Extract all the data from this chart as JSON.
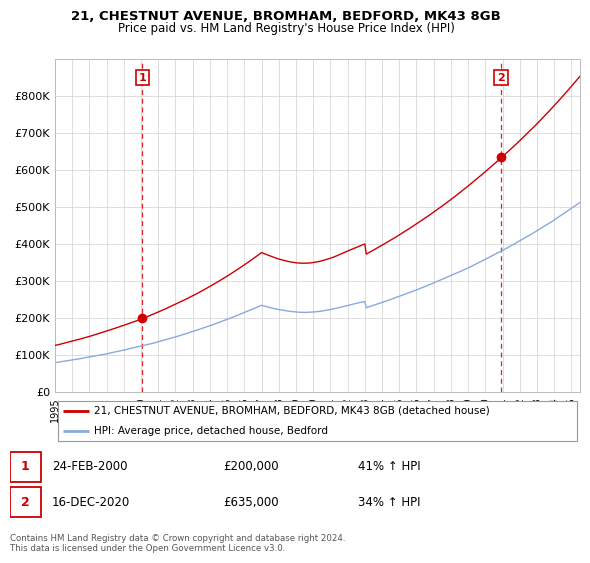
{
  "title_line1": "21, CHESTNUT AVENUE, BROMHAM, BEDFORD, MK43 8GB",
  "title_line2": "Price paid vs. HM Land Registry's House Price Index (HPI)",
  "legend_label1": "21, CHESTNUT AVENUE, BROMHAM, BEDFORD, MK43 8GB (detached house)",
  "legend_label2": "HPI: Average price, detached house, Bedford",
  "color_price": "#cc0000",
  "color_hpi": "#88aadd",
  "ylim": [
    0,
    900000
  ],
  "yticks": [
    0,
    100000,
    200000,
    300000,
    400000,
    500000,
    600000,
    700000,
    800000
  ],
  "ytick_labels": [
    "£0",
    "£100K",
    "£200K",
    "£300K",
    "£400K",
    "£500K",
    "£600K",
    "£700K",
    "£800K"
  ],
  "xtick_years": [
    1995,
    1996,
    1997,
    1998,
    1999,
    2000,
    2001,
    2002,
    2003,
    2004,
    2005,
    2006,
    2007,
    2008,
    2009,
    2010,
    2011,
    2012,
    2013,
    2014,
    2015,
    2016,
    2017,
    2018,
    2019,
    2020,
    2021,
    2022,
    2023,
    2024,
    2025
  ],
  "t_sale1": 2000.083,
  "t_sale2": 2020.917,
  "sale1_value": 200000,
  "sale2_value": 635000,
  "marker1_text_date": "24-FEB-2000",
  "marker1_text_price": "£200,000",
  "marker1_text_hpi": "41% ↑ HPI",
  "marker2_text_date": "16-DEC-2020",
  "marker2_text_price": "£635,000",
  "marker2_text_hpi": "34% ↑ HPI",
  "footer": "Contains HM Land Registry data © Crown copyright and database right 2024.\nThis data is licensed under the Open Government Licence v3.0."
}
